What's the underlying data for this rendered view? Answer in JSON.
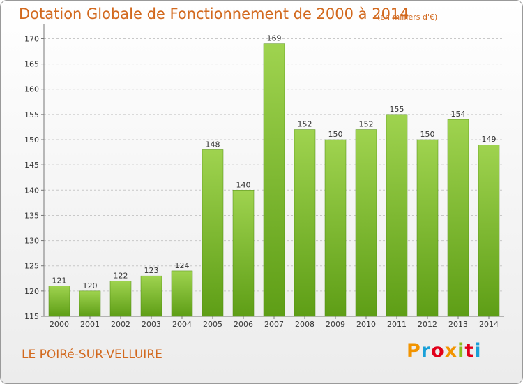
{
  "header": {
    "title": "Dotation Globale de Fonctionnement de 2000 à 2014",
    "subtitle": "(en milliers d'€)"
  },
  "footer": {
    "commune": "LE POIRé-SUR-VELLUIRE",
    "logo_text": "Proxiti"
  },
  "colors": {
    "accent": "#d2691e",
    "bar_top": "#9fd34f",
    "bar_bottom": "#5e9e16",
    "grid": "#c8c8c8",
    "logo": [
      "#f29400",
      "#1aa0d8",
      "#e2001a",
      "#f29400",
      "#8bbf1c",
      "#e2001a",
      "#1aa0d8"
    ]
  },
  "chart_data": {
    "type": "bar",
    "title": "Dotation Globale de Fonctionnement de 2000 à 2014",
    "subtitle": "(en milliers d'€)",
    "xlabel": "",
    "ylabel": "",
    "categories": [
      "2000",
      "2001",
      "2002",
      "2003",
      "2004",
      "2005",
      "2006",
      "2007",
      "2008",
      "2009",
      "2010",
      "2011",
      "2012",
      "2013",
      "2014"
    ],
    "values": [
      121,
      120,
      122,
      123,
      124,
      148,
      140,
      169,
      152,
      150,
      152,
      155,
      150,
      154,
      149
    ],
    "ylim": [
      115,
      172
    ],
    "yticks": [
      115,
      120,
      125,
      130,
      135,
      140,
      145,
      150,
      155,
      160,
      165,
      170
    ],
    "grid": true,
    "data_labels": true
  }
}
